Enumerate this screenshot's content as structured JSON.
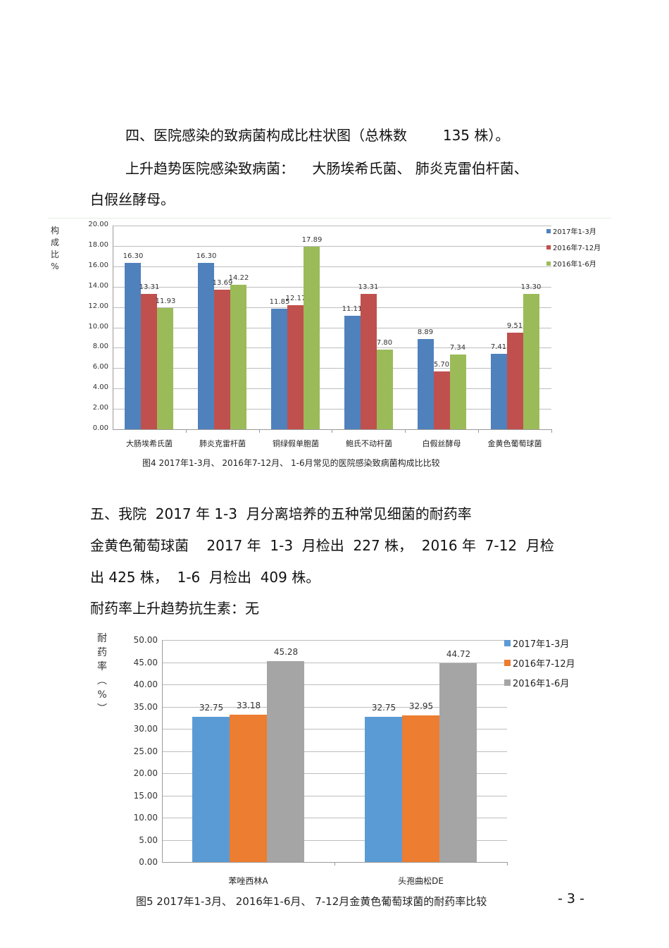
{
  "section4": {
    "heading": "四、医院感染的致病菌构成比柱状图（总株数        135 株）。",
    "line2": "上升趋势医院感染致病菌：    大肠埃希氏菌、 肺炎克雷伯杆菌、",
    "line3": "白假丝酵母。"
  },
  "section5": {
    "heading": "五、我院  2017 年 1-3  月分离培养的五种常见细菌的耐药率",
    "line2": "金黄色葡萄球菌    2017 年  1-3  月检出  227 株，  2016 年  7-12  月检",
    "line3": "出 425 株，  1-6  月检出  409 株。",
    "line4": "耐药率上升趋势抗生素：无"
  },
  "page_number": "- 3 -",
  "chart_data": [
    {
      "type": "bar",
      "title": "",
      "caption": "图4  2017年1-3月、 2016年7-12月、 1-6月常见的医院感染致病菌构成比比较",
      "xlabel": "",
      "ylabel": "构成比%",
      "ylabel_chars": [
        "构",
        "成",
        "比",
        "%"
      ],
      "ylim": [
        0,
        20
      ],
      "yticks": [
        "20.00",
        "18.00",
        "16.00",
        "14.00",
        "12.00",
        "10.00",
        "8.00",
        "6.00",
        "4.00",
        "2.00",
        "0.00"
      ],
      "grid": true,
      "legend_position": "right-top",
      "categories": [
        "大肠埃希氏菌",
        "肺炎克雷杆菌",
        "铜绿假单胞菌",
        "鲍氏不动杆菌",
        "白假丝酵母",
        "金黄色葡萄球菌"
      ],
      "series": [
        {
          "name": "2017年1-3月",
          "color": "#4f81bd",
          "values": [
            16.3,
            16.3,
            11.85,
            11.11,
            8.89,
            7.41
          ],
          "labels": [
            "16.30",
            "16.30",
            "11.85",
            "11.11",
            "8.89",
            "7.41"
          ]
        },
        {
          "name": "2016年7-12月",
          "color": "#c0504d",
          "values": [
            13.31,
            13.69,
            12.17,
            13.31,
            5.7,
            9.51
          ],
          "labels": [
            "13.31",
            "13.69",
            "12.17",
            "13.31",
            "5.70",
            "9.51"
          ]
        },
        {
          "name": "2016年1-6月",
          "color": "#9bbb59",
          "values": [
            11.93,
            14.22,
            17.89,
            7.8,
            7.34,
            13.3
          ],
          "labels": [
            "11.93",
            "14.22",
            "17.89",
            "7.80",
            "7.34",
            "13.30"
          ]
        }
      ]
    },
    {
      "type": "bar",
      "title": "",
      "caption": "图5  2017年1-3月、 2016年1-6月、 7-12月金黄色葡萄球菌的耐药率比较",
      "xlabel": "",
      "ylabel": "耐药率（%）",
      "ylabel_chars": [
        "耐",
        "药",
        "率",
        "︵",
        "%",
        "︶"
      ],
      "ylim": [
        0,
        50
      ],
      "yticks": [
        "50.00",
        "45.00",
        "40.00",
        "35.00",
        "30.00",
        "25.00",
        "20.00",
        "15.00",
        "10.00",
        "5.00",
        "0.00"
      ],
      "grid": true,
      "legend_position": "right-top",
      "categories": [
        "苯唑西林A",
        "头孢曲松DE"
      ],
      "series": [
        {
          "name": "2017年1-3月",
          "color": "#5b9bd5",
          "values": [
            32.75,
            32.75
          ],
          "labels": [
            "32.75",
            "32.75"
          ]
        },
        {
          "name": "2016年7-12月",
          "color": "#ed7d31",
          "values": [
            33.18,
            32.95
          ],
          "labels": [
            "33.18",
            "32.95"
          ]
        },
        {
          "name": "2016年1-6月",
          "color": "#a5a5a5",
          "values": [
            45.28,
            44.72
          ],
          "labels": [
            "45.28",
            "44.72"
          ]
        }
      ]
    }
  ]
}
